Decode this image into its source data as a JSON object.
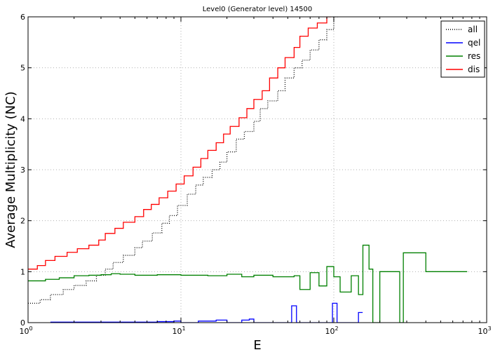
{
  "chart_data": {
    "type": "line",
    "title": "Level0 (Generator level) 14500",
    "xlabel": "E",
    "ylabel": "Average Multiplicity (NC)",
    "xscale": "log",
    "xlim": [
      1,
      1000
    ],
    "ylim": [
      0,
      6
    ],
    "grid": true,
    "legend_position": "top-right",
    "x_ticks": [
      {
        "value": 1,
        "label": "10",
        "exp": "0"
      },
      {
        "value": 10,
        "label": "10",
        "exp": "1"
      },
      {
        "value": 100,
        "label": "10",
        "exp": "2"
      },
      {
        "value": 1000,
        "label": "10",
        "exp": "3"
      }
    ],
    "y_ticks": [
      {
        "value": 0,
        "label": "0"
      },
      {
        "value": 1,
        "label": "1"
      },
      {
        "value": 2,
        "label": "2"
      },
      {
        "value": 3,
        "label": "3"
      },
      {
        "value": 4,
        "label": "4"
      },
      {
        "value": 5,
        "label": "5"
      },
      {
        "value": 6,
        "label": "6"
      }
    ],
    "series": [
      {
        "name": "all",
        "color": "#000000",
        "style": "dotted",
        "points": [
          [
            1.0,
            0.38
          ],
          [
            1.2,
            0.45
          ],
          [
            1.4,
            0.55
          ],
          [
            1.7,
            0.65
          ],
          [
            2.0,
            0.73
          ],
          [
            2.4,
            0.82
          ],
          [
            2.8,
            0.93
          ],
          [
            3.2,
            1.05
          ],
          [
            3.6,
            1.18
          ],
          [
            4.2,
            1.32
          ],
          [
            5.0,
            1.47
          ],
          [
            5.6,
            1.6
          ],
          [
            6.5,
            1.76
          ],
          [
            7.5,
            1.95
          ],
          [
            8.4,
            2.1
          ],
          [
            9.5,
            2.3
          ],
          [
            11.0,
            2.52
          ],
          [
            12.5,
            2.7
          ],
          [
            14.0,
            2.85
          ],
          [
            16.0,
            3.0
          ],
          [
            18.0,
            3.15
          ],
          [
            20.0,
            3.35
          ],
          [
            23.0,
            3.6
          ],
          [
            26.0,
            3.75
          ],
          [
            30.0,
            3.95
          ],
          [
            33.0,
            4.2
          ],
          [
            37.0,
            4.35
          ],
          [
            43.0,
            4.55
          ],
          [
            48.0,
            4.8
          ],
          [
            55.0,
            5.0
          ],
          [
            62.0,
            5.15
          ],
          [
            70.0,
            5.35
          ],
          [
            80.0,
            5.55
          ],
          [
            90.0,
            5.75
          ],
          [
            100.0,
            6.0
          ]
        ]
      },
      {
        "name": "qel",
        "color": "#0000ff",
        "style": "solid",
        "points": [
          [
            1.4,
            0.01
          ],
          [
            2.0,
            0.01
          ],
          [
            3.0,
            0.01
          ],
          [
            5.0,
            0.01
          ],
          [
            7.0,
            0.02
          ],
          [
            9.0,
            0.03
          ],
          [
            10.0,
            0.0
          ],
          [
            13.0,
            0.03
          ],
          [
            17.0,
            0.05
          ],
          [
            20.0,
            0.0
          ],
          [
            25.0,
            0.05
          ],
          [
            28.0,
            0.07
          ],
          [
            30.0,
            0.0
          ],
          [
            53.0,
            0.33
          ],
          [
            57.0,
            0.0
          ],
          [
            98.0,
            0.38
          ],
          [
            105.0,
            0.0
          ],
          [
            145.0,
            0.2
          ]
        ]
      },
      {
        "name": "res",
        "color": "#008000",
        "style": "solid",
        "points": [
          [
            1.0,
            0.82
          ],
          [
            1.3,
            0.85
          ],
          [
            1.6,
            0.88
          ],
          [
            2.0,
            0.92
          ],
          [
            2.5,
            0.93
          ],
          [
            3.0,
            0.94
          ],
          [
            3.5,
            0.96
          ],
          [
            4.0,
            0.95
          ],
          [
            5.0,
            0.93
          ],
          [
            7.0,
            0.94
          ],
          [
            10.0,
            0.93
          ],
          [
            15.0,
            0.92
          ],
          [
            20.0,
            0.95
          ],
          [
            25.0,
            0.9
          ],
          [
            30.0,
            0.93
          ],
          [
            40.0,
            0.9
          ],
          [
            55.0,
            0.92
          ],
          [
            60.0,
            0.65
          ],
          [
            70.0,
            0.98
          ],
          [
            80.0,
            0.72
          ],
          [
            90.0,
            1.1
          ],
          [
            100.0,
            0.9
          ],
          [
            110.0,
            0.6
          ],
          [
            130.0,
            0.92
          ],
          [
            145.0,
            0.55
          ],
          [
            155.0,
            1.52
          ],
          [
            170.0,
            1.05
          ],
          [
            180.0,
            0.0
          ],
          [
            200.0,
            1.0
          ],
          [
            270.0,
            0.0
          ],
          [
            285.0,
            1.37
          ],
          [
            400.0,
            1.0
          ],
          [
            500.0,
            1.0
          ],
          [
            600.0,
            1.0
          ],
          [
            700.0,
            1.0
          ]
        ]
      },
      {
        "name": "dis",
        "color": "#ff0000",
        "style": "solid",
        "points": [
          [
            1.0,
            1.05
          ],
          [
            1.15,
            1.12
          ],
          [
            1.3,
            1.22
          ],
          [
            1.5,
            1.3
          ],
          [
            1.8,
            1.38
          ],
          [
            2.1,
            1.45
          ],
          [
            2.5,
            1.52
          ],
          [
            2.9,
            1.62
          ],
          [
            3.2,
            1.75
          ],
          [
            3.7,
            1.85
          ],
          [
            4.2,
            1.97
          ],
          [
            5.0,
            2.08
          ],
          [
            5.7,
            2.22
          ],
          [
            6.4,
            2.32
          ],
          [
            7.2,
            2.45
          ],
          [
            8.2,
            2.58
          ],
          [
            9.3,
            2.72
          ],
          [
            10.5,
            2.88
          ],
          [
            12.0,
            3.05
          ],
          [
            13.5,
            3.22
          ],
          [
            15.0,
            3.38
          ],
          [
            17.0,
            3.53
          ],
          [
            19.0,
            3.7
          ],
          [
            21.0,
            3.85
          ],
          [
            24.0,
            4.02
          ],
          [
            27.0,
            4.2
          ],
          [
            30.0,
            4.38
          ],
          [
            34.0,
            4.55
          ],
          [
            38.0,
            4.8
          ],
          [
            43.0,
            5.0
          ],
          [
            48.0,
            5.2
          ],
          [
            55.0,
            5.4
          ],
          [
            60.0,
            5.62
          ],
          [
            68.0,
            5.78
          ],
          [
            78.0,
            5.88
          ],
          [
            90.0,
            6.0
          ]
        ]
      }
    ]
  }
}
